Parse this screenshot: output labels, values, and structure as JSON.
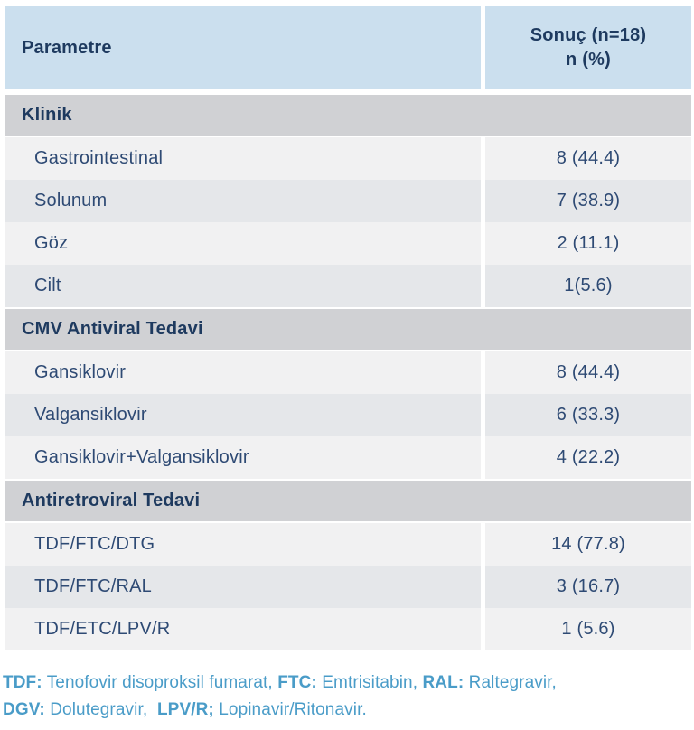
{
  "table": {
    "header": {
      "col1": "Parametre",
      "col2_line1": "Sonuç (n=18)",
      "col2_line2": "n (%)"
    },
    "rows": [
      {
        "type": "section",
        "label": "Klinik",
        "value": ""
      },
      {
        "type": "data",
        "shade": "light",
        "label": "Gastrointestinal",
        "value": "8 (44.4)"
      },
      {
        "type": "data",
        "shade": "dark",
        "label": "Solunum",
        "value": "7 (38.9)"
      },
      {
        "type": "data",
        "shade": "light",
        "label": "Göz",
        "value": "2 (11.1)"
      },
      {
        "type": "data",
        "shade": "dark",
        "label": "Cilt",
        "value": "1(5.6)"
      },
      {
        "type": "section",
        "label": "CMV Antiviral Tedavi",
        "value": ""
      },
      {
        "type": "data",
        "shade": "light",
        "label": "Gansiklovir",
        "value": "8 (44.4)"
      },
      {
        "type": "data",
        "shade": "dark",
        "label": "Valgansiklovir",
        "value": "6 (33.3)"
      },
      {
        "type": "data",
        "shade": "light",
        "label": "Gansiklovir+Valgansiklovir",
        "value": "4 (22.2)"
      },
      {
        "type": "section",
        "label": "Antiretroviral Tedavi",
        "value": ""
      },
      {
        "type": "data",
        "shade": "light",
        "label": "TDF/FTC/DTG",
        "value": "14 (77.8)"
      },
      {
        "type": "data",
        "shade": "dark",
        "label": "TDF/FTC/RAL",
        "value": "3 (16.7)"
      },
      {
        "type": "data",
        "shade": "light",
        "label": "TDF/ETC/LPV/R",
        "value": "1 (5.6)"
      }
    ]
  },
  "footnote": {
    "segments": [
      {
        "bold": "TDF:",
        "text": " Tenofovir disoproksil fumarat, "
      },
      {
        "bold": "FTC:",
        "text": " Emtrisitabin, "
      },
      {
        "bold": "RAL:",
        "text": " Raltegravir,\n"
      },
      {
        "bold": "DGV:",
        "text": " Dolutegravir,  "
      },
      {
        "bold": "LPV/R;",
        "text": " Lopinavir/Ritonavir."
      }
    ]
  },
  "colors": {
    "header_bg": "#cbdfee",
    "section_bg": "#d0d1d4",
    "row_light": "#f1f1f2",
    "row_dark": "#e5e7ea",
    "heading_text": "#1e3a5f",
    "body_text": "#2e4a74",
    "footnote_text": "#4a9cc8"
  }
}
